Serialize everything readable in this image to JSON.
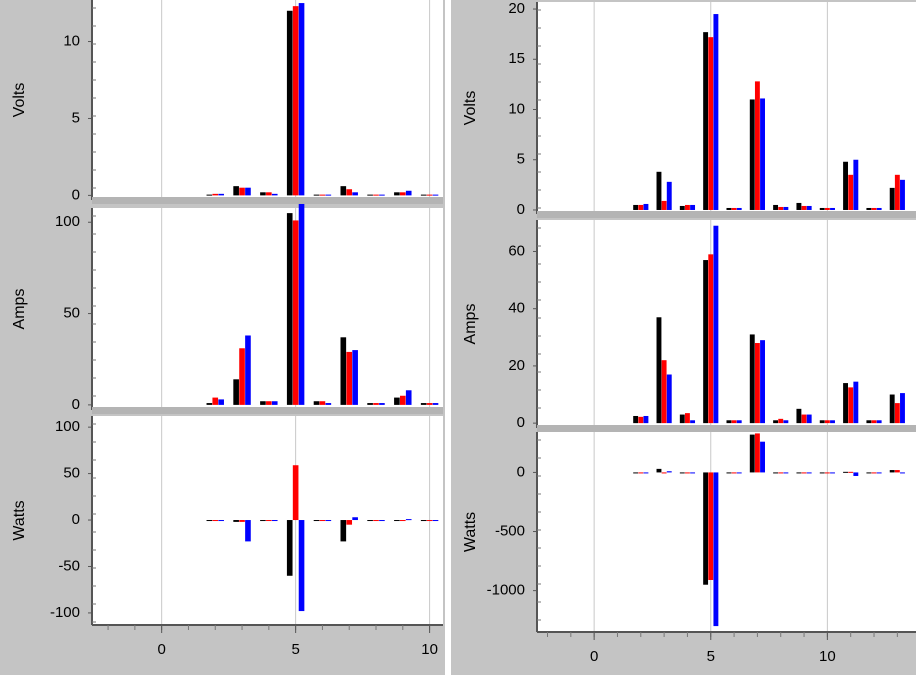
{
  "chart_data": [
    {
      "type": "bar",
      "y_label": "Volts",
      "x": [
        2,
        3,
        4,
        5,
        6,
        7,
        8,
        9,
        10
      ],
      "xlim": [
        -2.6,
        10.5
      ],
      "ylim": [
        -0.3,
        12.7
      ],
      "yticks": [
        0,
        5,
        10
      ],
      "series": [
        {
          "color": "#000000",
          "values": [
            0.05,
            0.6,
            0.2,
            12,
            0.05,
            0.6,
            0.05,
            0.2,
            0.05
          ]
        },
        {
          "color": "#ff0000",
          "values": [
            0.1,
            0.5,
            0.2,
            12.3,
            0.05,
            0.4,
            0.05,
            0.2,
            0.05
          ]
        },
        {
          "color": "#0000ff",
          "values": [
            0.1,
            0.5,
            0.1,
            12.5,
            0.05,
            0.2,
            0.05,
            0.3,
            0.05
          ]
        }
      ]
    },
    {
      "type": "bar",
      "y_label": "Amps",
      "x": [
        2,
        3,
        4,
        5,
        6,
        7,
        8,
        9,
        10
      ],
      "xlim": [
        -2.6,
        10.5
      ],
      "ylim": [
        -2.8,
        107.8
      ],
      "yticks": [
        0,
        50,
        100
      ],
      "series": [
        {
          "color": "#000000",
          "values": [
            1,
            14,
            2,
            105,
            2,
            37,
            1,
            4,
            1
          ]
        },
        {
          "color": "#ff0000",
          "values": [
            4,
            31,
            2,
            101,
            2,
            29,
            1,
            5,
            1
          ]
        },
        {
          "color": "#0000ff",
          "values": [
            3,
            38,
            2,
            110,
            1,
            30,
            1,
            8,
            1
          ]
        }
      ]
    },
    {
      "type": "bar",
      "y_label": "Watts",
      "x": [
        2,
        3,
        4,
        5,
        6,
        7,
        8,
        9,
        10
      ],
      "xlim": [
        -2.6,
        10.5
      ],
      "ylim": [
        -113,
        112
      ],
      "yticks": [
        -100,
        -50,
        0,
        50,
        100
      ],
      "xticks": [
        0,
        5,
        10
      ],
      "grid": true,
      "series": [
        {
          "color": "#000000",
          "values": [
            0,
            -2,
            0,
            -60,
            0,
            -23,
            0,
            0,
            0
          ]
        },
        {
          "color": "#ff0000",
          "values": [
            0,
            -2,
            0,
            59,
            0,
            -5,
            0,
            0,
            0
          ]
        },
        {
          "color": "#0000ff",
          "values": [
            0,
            -23,
            0,
            -98,
            0,
            3,
            0,
            1,
            0
          ]
        }
      ]
    },
    {
      "type": "bar",
      "y_label": "Volts",
      "x": [
        2,
        3,
        4,
        5,
        6,
        7,
        8,
        9,
        10,
        11,
        12,
        13
      ],
      "xlim": [
        -2.45,
        13.8
      ],
      "ylim": [
        -0.4,
        20.7
      ],
      "yticks": [
        0,
        5,
        10,
        15,
        20
      ],
      "series": [
        {
          "color": "#000000",
          "values": [
            0.5,
            3.8,
            0.4,
            17.7,
            0.2,
            11,
            0.5,
            0.7,
            0.2,
            4.8,
            0.2,
            2.2
          ]
        },
        {
          "color": "#ff0000",
          "values": [
            0.5,
            0.9,
            0.5,
            17.2,
            0.2,
            12.8,
            0.3,
            0.4,
            0.2,
            3.5,
            0.2,
            3.5
          ]
        },
        {
          "color": "#0000ff",
          "values": [
            0.6,
            2.8,
            0.5,
            19.5,
            0.2,
            11.1,
            0.3,
            0.4,
            0.2,
            5,
            0.2,
            3
          ]
        }
      ]
    },
    {
      "type": "bar",
      "y_label": "Amps",
      "x": [
        2,
        3,
        4,
        5,
        6,
        7,
        8,
        9,
        10,
        11,
        12,
        13
      ],
      "xlim": [
        -2.45,
        13.8
      ],
      "ylim": [
        -1.7,
        71
      ],
      "yticks": [
        0,
        20,
        40,
        60
      ],
      "series": [
        {
          "color": "#000000",
          "values": [
            2.5,
            37,
            3,
            57,
            1,
            31,
            1,
            5,
            1,
            14,
            1,
            10
          ]
        },
        {
          "color": "#ff0000",
          "values": [
            2.2,
            22,
            3.5,
            59,
            1,
            28,
            1.5,
            3,
            1,
            12.5,
            1,
            7
          ]
        },
        {
          "color": "#0000ff",
          "values": [
            2.5,
            17,
            1,
            69,
            1,
            29,
            1,
            3,
            1,
            14.5,
            1,
            10.5
          ]
        }
      ]
    },
    {
      "type": "bar",
      "y_label": "Watts",
      "x": [
        2,
        3,
        4,
        5,
        6,
        7,
        8,
        9,
        10,
        11,
        12,
        13
      ],
      "xlim": [
        -2.45,
        13.8
      ],
      "ylim": [
        -1350,
        342
      ],
      "yticks": [
        -1000,
        -500,
        0
      ],
      "xticks": [
        0,
        5,
        10
      ],
      "grid": true,
      "series": [
        {
          "color": "#000000",
          "values": [
            0,
            30,
            0,
            -950,
            0,
            320,
            0,
            0,
            0,
            5,
            0,
            20
          ]
        },
        {
          "color": "#ff0000",
          "values": [
            0,
            0,
            0,
            -910,
            0,
            330,
            0,
            0,
            0,
            5,
            0,
            20
          ]
        },
        {
          "color": "#0000ff",
          "values": [
            0,
            10,
            0,
            -1300,
            0,
            260,
            0,
            0,
            0,
            -30,
            0,
            0
          ]
        }
      ]
    }
  ]
}
